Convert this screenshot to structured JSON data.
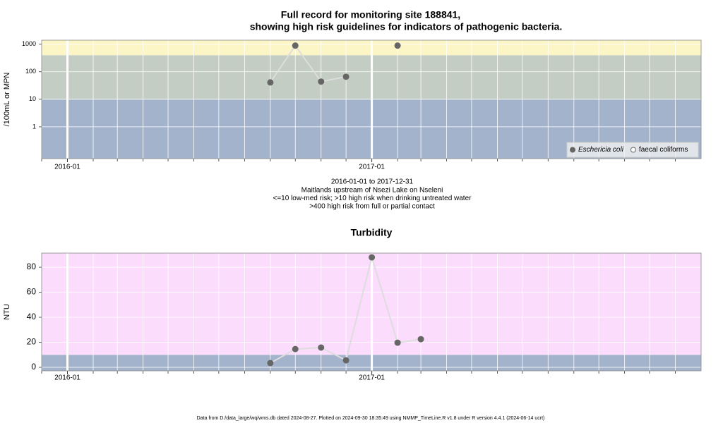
{
  "chart_data": [
    {
      "type": "line",
      "title": [
        "Full record for monitoring site 188841,",
        "showing high risk guidelines for indicators of pathogenic bacteria."
      ],
      "y_label": "/100mL or MPN",
      "notes": [
        "2016-01-01 to 2017-12-31",
        "Maitlands upstream of Nsezi Lake on Nseleni",
        "<=10 low-med risk; >10 high risk when drinking untreated water",
        ">400 high risk from full or partial contact"
      ],
      "log_y": true,
      "x": [
        "2016-09",
        "2016-10",
        "2016-11",
        "2016-12",
        "2017-01",
        "2017-02"
      ],
      "series": [
        {
          "name": "Eschericia coli",
          "color": "#666666",
          "marker": "filled",
          "values": [
            41,
            890,
            44,
            66,
            null,
            890
          ]
        },
        {
          "name": "faecal coliforms",
          "color": "#666666",
          "marker": "open",
          "values": [
            null,
            null,
            null,
            null,
            null,
            null
          ]
        }
      ],
      "line_color": "#dddddd",
      "bands": [
        {
          "to": 10,
          "color": "#a3b3cc"
        },
        {
          "to": 400,
          "color": "#c3cdc3"
        },
        {
          "to": 1400,
          "color": "#fcf5c6"
        }
      ],
      "xlim": [
        "2015-12",
        "2018-02"
      ],
      "xticks": [
        "2016-01",
        "2017-01"
      ],
      "x_minor_ticks": [
        "2015-12",
        "2016-02",
        "2016-03",
        "2016-04",
        "2016-05",
        "2016-06",
        "2016-07",
        "2016-08",
        "2016-09",
        "2016-10",
        "2016-11",
        "2016-12",
        "2017-02",
        "2017-03",
        "2017-04",
        "2017-05",
        "2017-06",
        "2017-07",
        "2017-08",
        "2017-09",
        "2017-10",
        "2017-11",
        "2017-12",
        "2018-01"
      ],
      "ylim": [
        0.07,
        1400
      ],
      "yticks": [
        1,
        10,
        100,
        1000
      ],
      "grid": true,
      "legend": "bottom-right"
    },
    {
      "type": "line",
      "title": [
        "Turbidity"
      ],
      "y_label": "NTU",
      "log_y": false,
      "x": [
        "2016-09",
        "2016-10",
        "2016-11",
        "2016-12",
        "2017-01",
        "2017-02",
        "2017-03"
      ],
      "series": [
        {
          "name": "Turbidity",
          "color": "#666666",
          "marker": "filled",
          "values": [
            3.4,
            14.6,
            15.8,
            5.6,
            87.9,
            19.7,
            22.5
          ]
        }
      ],
      "line_color": "#dddddd",
      "bands": [
        {
          "to": 10,
          "color": "#a3b3cc"
        },
        {
          "to": 91.3,
          "color": "#fcdcfc"
        }
      ],
      "xlim": [
        "2015-12",
        "2018-02"
      ],
      "xticks": [
        "2016-01",
        "2017-01"
      ],
      "x_minor_ticks": [
        "2015-12",
        "2016-02",
        "2016-03",
        "2016-04",
        "2016-05",
        "2016-06",
        "2016-07",
        "2016-08",
        "2016-09",
        "2016-10",
        "2016-11",
        "2016-12",
        "2017-02",
        "2017-03",
        "2017-04",
        "2017-05",
        "2017-06",
        "2017-07",
        "2017-08",
        "2017-09",
        "2017-10",
        "2017-11",
        "2017-12",
        "2018-01"
      ],
      "ylim": [
        -2.8,
        91.3
      ],
      "yticks": [
        0,
        20,
        40,
        60,
        80
      ],
      "grid": true
    }
  ],
  "footer": "Data from D:/data_large/wq/wms.db dated 2024-08-27. Plotted on 2024-09-30 18:35:49 using NMMP_TimeLine.R v1.8 under R version 4.4.1 (2024-06-14 ucrt)"
}
